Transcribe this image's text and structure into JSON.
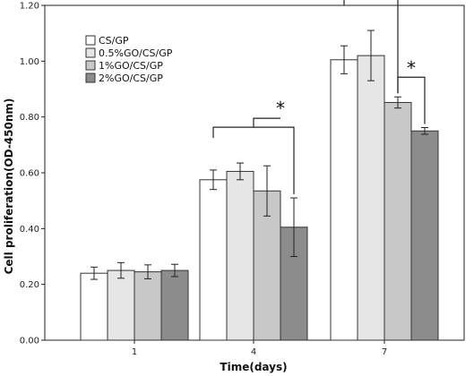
{
  "chart_data": {
    "type": "bar",
    "xlabel": "Time(days)",
    "ylabel": "Cell proliferation(OD-450nm)",
    "ylim": [
      0,
      1.2
    ],
    "yticks": [
      "0.00",
      "0.20",
      "0.40",
      "0.60",
      "0.80",
      "1.00",
      "1.20"
    ],
    "categories": [
      "1",
      "4",
      "7"
    ],
    "legend_position": "top-left",
    "series": [
      {
        "name": "CS/GP",
        "color": "#ffffff",
        "values": [
          0.24,
          0.575,
          1.005
        ],
        "errors": [
          0.022,
          0.035,
          0.05
        ]
      },
      {
        "name": "0.5%GO/CS/GP",
        "color": "#e6e6e6",
        "values": [
          0.25,
          0.605,
          1.02
        ],
        "errors": [
          0.028,
          0.03,
          0.09
        ]
      },
      {
        "name": "1%GO/CS/GP",
        "color": "#c8c8c8",
        "values": [
          0.245,
          0.535,
          0.852
        ],
        "errors": [
          0.025,
          0.09,
          0.02
        ]
      },
      {
        "name": "2%GO/CS/GP",
        "color": "#8c8c8c",
        "values": [
          0.25,
          0.405,
          0.75
        ],
        "errors": [
          0.022,
          0.105,
          0.012
        ]
      }
    ],
    "annotations": [
      {
        "text": "*",
        "category": "4",
        "from_series": 0,
        "to_series": 3
      },
      {
        "text": "*",
        "category": "7",
        "from_series": 0,
        "to_series": 2
      },
      {
        "text": "*",
        "category": "7",
        "from_series": 2,
        "to_series": 3
      }
    ]
  }
}
